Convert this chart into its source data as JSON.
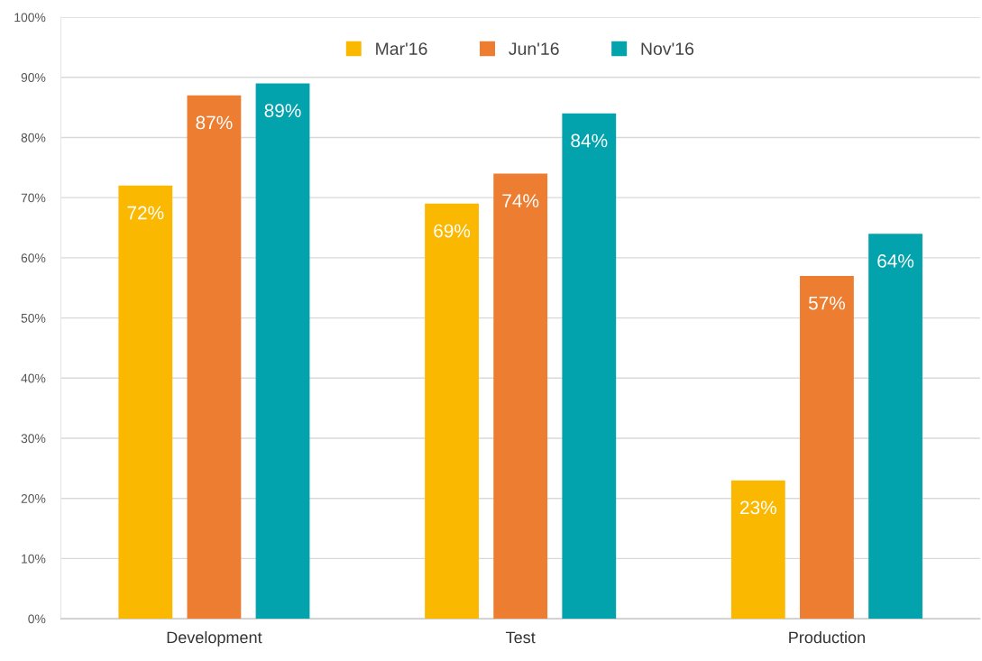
{
  "chart_data": {
    "type": "bar",
    "categories": [
      "Development",
      "Test",
      "Production"
    ],
    "series": [
      {
        "name": "Mar'16",
        "color": "#fbb800",
        "values": [
          72,
          69,
          23
        ],
        "value_labels": [
          "72%",
          "69%",
          "23%"
        ]
      },
      {
        "name": "Jun'16",
        "color": "#ed7d31",
        "values": [
          87,
          74,
          57
        ],
        "value_labels": [
          "87%",
          "74%",
          "57%"
        ]
      },
      {
        "name": "Nov'16",
        "color": "#02a3ad",
        "values": [
          89,
          84,
          64
        ],
        "value_labels": [
          "89%",
          "84%",
          "64%"
        ]
      }
    ],
    "ylim": [
      0,
      100
    ],
    "yticks": [
      {
        "value": 0,
        "label": "0%"
      },
      {
        "value": 10,
        "label": "10%"
      },
      {
        "value": 20,
        "label": "20%"
      },
      {
        "value": 30,
        "label": "30%"
      },
      {
        "value": 40,
        "label": "40%"
      },
      {
        "value": 50,
        "label": "50%"
      },
      {
        "value": 60,
        "label": "60%"
      },
      {
        "value": 70,
        "label": "70%"
      },
      {
        "value": 80,
        "label": "80%"
      },
      {
        "value": 90,
        "label": "90%"
      },
      {
        "value": 100,
        "label": "100%"
      }
    ],
    "grid": "y",
    "legend": "top"
  }
}
